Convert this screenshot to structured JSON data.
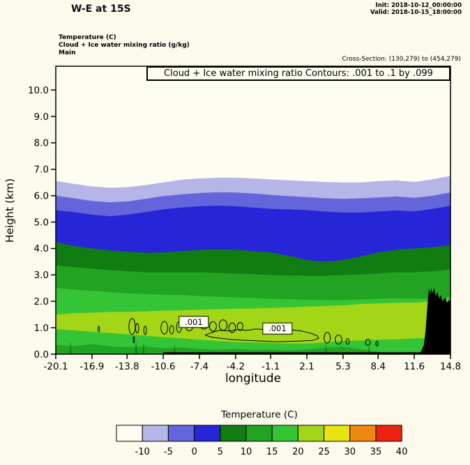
{
  "header": {
    "title": "W-E at 15S",
    "init_label": "Init: 2018-10-12_00:00:00",
    "valid_label": "Valid: 2018-10-15_18:00:00",
    "field_lines": [
      "Temperature  (C)",
      "Cloud + Ice water mixing ratio  (g/kg)",
      "Main"
    ],
    "cross_section": "Cross-Section: (130,279) to (454,279)"
  },
  "plot": {
    "contour_info": "Cloud + Ice water mixing ratio Contours: .001 to .1 by .099",
    "xlabel": "longitude",
    "ylabel": "Height (km)"
  },
  "colorbar": {
    "title": "Temperature  (C)",
    "labels": [
      "-10",
      "-5",
      "0",
      "5",
      "10",
      "15",
      "20",
      "25",
      "30",
      "35",
      "40"
    ],
    "colors": [
      "#fdfdf2",
      "#b5b5e8",
      "#6565db",
      "#2626d8",
      "#117c11",
      "#22a322",
      "#35c435",
      "#a3d616",
      "#e8e414",
      "#ef8812",
      "#ee2212"
    ]
  },
  "chart_data": {
    "type": "filled_contour_cross_section",
    "title": "Cloud + Ice water mixing ratio Contours: .001 to .1 by .099",
    "xlabel": "longitude",
    "ylabel": "Height (km)",
    "ylim_km": [
      0,
      10.9
    ],
    "x_tick_values": [
      -20.1,
      -16.9,
      -13.8,
      -10.6,
      -7.4,
      -4.2,
      -1.1,
      2.1,
      5.3,
      8.4,
      11.6,
      14.8
    ],
    "x_tick_labels": [
      "-20.1",
      "-16.9",
      "-13.8",
      "-10.6",
      "-7.4",
      "-4.2",
      "-1.1",
      "2.1",
      "5.3",
      "8.4",
      "11.6",
      "14.8"
    ],
    "y_tick_values": [
      0,
      1,
      2,
      3,
      4,
      5,
      6,
      7,
      8,
      9,
      10
    ],
    "y_tick_labels": [
      "0.0",
      "1.0",
      "2.0",
      "3.0",
      "4.0",
      "5.0",
      "6.0",
      "7.0",
      "8.0",
      "9.0",
      "10.0"
    ],
    "x": [
      -20.1,
      -18.5,
      -16.9,
      -15.3,
      -13.8,
      -12.2,
      -10.6,
      -9.0,
      -7.4,
      -5.8,
      -4.2,
      -2.6,
      -1.1,
      0.5,
      2.1,
      3.7,
      5.3,
      6.9,
      8.4,
      10.0,
      11.6,
      13.2,
      14.8
    ],
    "temperature_bands": [
      {
        "range_c": "below -10",
        "color": "#fdfdf2"
      },
      {
        "range_c": "-10 to -5",
        "color": "#b5b5e8",
        "top_height_km": [
          6.55,
          6.45,
          6.35,
          6.3,
          6.32,
          6.4,
          6.5,
          6.6,
          6.65,
          6.68,
          6.68,
          6.65,
          6.62,
          6.58,
          6.55,
          6.52,
          6.5,
          6.5,
          6.55,
          6.58,
          6.52,
          6.62,
          6.75
        ]
      },
      {
        "range_c": "-5 to 0",
        "color": "#6565db",
        "top_height_km": [
          6.0,
          5.9,
          5.8,
          5.75,
          5.78,
          5.88,
          5.98,
          6.05,
          6.1,
          6.13,
          6.12,
          6.08,
          6.03,
          5.98,
          5.95,
          5.9,
          5.88,
          5.9,
          5.93,
          5.97,
          5.92,
          6.0,
          6.12
        ]
      },
      {
        "range_c": "0 to 5",
        "color": "#2626d8",
        "top_height_km": [
          5.45,
          5.38,
          5.28,
          5.22,
          5.28,
          5.38,
          5.48,
          5.55,
          5.6,
          5.62,
          5.6,
          5.55,
          5.5,
          5.48,
          5.45,
          5.4,
          5.36,
          5.36,
          5.4,
          5.44,
          5.4,
          5.5,
          5.62
        ]
      },
      {
        "range_c": "5 to 10",
        "color": "#117c11",
        "top_height_km": [
          4.25,
          4.1,
          4.0,
          3.93,
          3.88,
          3.84,
          3.85,
          3.9,
          3.95,
          3.97,
          3.95,
          3.9,
          3.85,
          3.72,
          3.56,
          3.5,
          3.56,
          3.7,
          3.85,
          3.95,
          4.0,
          4.05,
          4.12
        ]
      },
      {
        "range_c": "10 to 15",
        "color": "#22a322",
        "top_height_km": [
          3.35,
          3.3,
          3.24,
          3.18,
          3.14,
          3.1,
          3.1,
          3.1,
          3.1,
          3.08,
          3.05,
          3.03,
          3.0,
          2.98,
          2.96,
          2.96,
          3.0,
          3.02,
          3.06,
          3.1,
          3.1,
          3.14,
          3.2
        ]
      },
      {
        "range_c": "15 to 20",
        "color": "#35c435",
        "top_height_km": [
          2.5,
          2.45,
          2.4,
          2.35,
          2.3,
          2.28,
          2.25,
          2.24,
          2.2,
          2.18,
          2.15,
          2.13,
          2.1,
          2.08,
          2.06,
          2.05,
          2.05,
          2.08,
          2.1,
          2.12,
          2.1,
          2.1,
          2.15
        ]
      }
    ],
    "inversion_band": {
      "range_c": "20 to 25",
      "color": "#a3d616",
      "top_height_km": [
        1.5,
        1.55,
        1.57,
        1.6,
        1.6,
        1.62,
        1.65,
        1.66,
        1.68,
        1.7,
        1.72,
        1.73,
        1.75,
        1.77,
        1.8,
        1.82,
        1.85,
        1.9,
        1.92,
        1.95,
        1.95,
        2.0,
        2.05
      ],
      "bottom_height_km": [
        0.95,
        0.9,
        0.85,
        0.8,
        0.75,
        0.7,
        0.64,
        0.6,
        0.55,
        0.5,
        0.46,
        0.44,
        0.42,
        0.4,
        0.4,
        0.44,
        0.5,
        0.52,
        0.55,
        0.56,
        0.6,
        0.6,
        0.6
      ]
    },
    "cool_surface_layer": {
      "range_c": "10 to 15",
      "color": "#22a322",
      "top_height_km": [
        0.35,
        0.3,
        0.38,
        0.3,
        0.26,
        0.3,
        0.22,
        0.25,
        0.2,
        0.16,
        0.2,
        0.15,
        0.18,
        0.14,
        0.18,
        0.24,
        0.28,
        0.18,
        0.1,
        0.04,
        0.0,
        0.0,
        0.0
      ]
    },
    "surface_dips": {
      "color": "#117c11",
      "half_width_deg": 0.1,
      "points": [
        [
          -18.8,
          0.5
        ],
        [
          -13.0,
          0.55
        ],
        [
          -12.35,
          0.45
        ],
        [
          -9.6,
          0.4
        ],
        [
          3.8,
          0.4
        ],
        [
          7.6,
          0.35
        ]
      ]
    },
    "terrain": {
      "color": "#000000",
      "profile_lon_km": [
        [
          11.9,
          0
        ],
        [
          12.2,
          0.1
        ],
        [
          12.45,
          0.35
        ],
        [
          12.6,
          0.9
        ],
        [
          12.72,
          1.6
        ],
        [
          12.82,
          2.2
        ],
        [
          12.9,
          2.5
        ],
        [
          13.0,
          2.25
        ],
        [
          13.1,
          2.5
        ],
        [
          13.2,
          2.3
        ],
        [
          13.35,
          2.5
        ],
        [
          13.5,
          2.2
        ],
        [
          13.65,
          2.35
        ],
        [
          13.8,
          2.1
        ],
        [
          13.95,
          2.25
        ],
        [
          14.1,
          2.0
        ],
        [
          14.3,
          2.15
        ],
        [
          14.5,
          1.95
        ],
        [
          14.65,
          2.05
        ],
        [
          14.8,
          2.0
        ],
        [
          14.8,
          0
        ]
      ]
    },
    "surface_strip": {
      "color": "#000000",
      "x_from": -10.6,
      "x_to": 14.8,
      "top_km": 0.07
    },
    "cloud_contours": {
      "color": "#000000",
      "levels": [
        0.001,
        0.1
      ],
      "label_text": ".001",
      "ellipses": [
        [
          -16.3,
          0.95,
          0.07,
          0.1
        ],
        [
          -13.35,
          1.05,
          0.28,
          0.3
        ],
        [
          -12.9,
          0.98,
          0.14,
          0.18
        ],
        [
          -13.2,
          0.55,
          0.05,
          0.12
        ],
        [
          -12.2,
          0.9,
          0.12,
          0.16
        ],
        [
          -10.5,
          1.0,
          0.3,
          0.24
        ],
        [
          -9.85,
          0.92,
          0.18,
          0.16
        ],
        [
          -9.2,
          1.02,
          0.22,
          0.2
        ],
        [
          -8.3,
          1.1,
          0.35,
          0.22
        ],
        [
          -7.0,
          1.15,
          0.4,
          0.2
        ],
        [
          -6.2,
          1.05,
          0.3,
          0.18
        ],
        [
          -5.3,
          1.1,
          0.35,
          0.2
        ],
        [
          -4.5,
          1.0,
          0.3,
          0.18
        ],
        [
          -3.8,
          1.05,
          0.25,
          0.15
        ],
        [
          3.9,
          0.62,
          0.28,
          0.2
        ],
        [
          4.9,
          0.55,
          0.3,
          0.17
        ],
        [
          5.7,
          0.48,
          0.14,
          0.11
        ],
        [
          7.5,
          0.45,
          0.2,
          0.12
        ],
        [
          8.3,
          0.4,
          0.1,
          0.09
        ]
      ],
      "outline": [
        [
          -6.9,
          0.72
        ],
        [
          -6.3,
          0.82
        ],
        [
          -5.6,
          0.9
        ],
        [
          -4.8,
          0.88
        ],
        [
          -4.0,
          0.93
        ],
        [
          -3.2,
          0.9
        ],
        [
          -2.4,
          0.95
        ],
        [
          -1.6,
          0.93
        ],
        [
          -0.8,
          0.97
        ],
        [
          0.0,
          0.95
        ],
        [
          0.8,
          0.92
        ],
        [
          1.6,
          0.88
        ],
        [
          2.4,
          0.8
        ],
        [
          3.0,
          0.7
        ],
        [
          3.15,
          0.6
        ],
        [
          2.6,
          0.52
        ],
        [
          1.6,
          0.5
        ],
        [
          0.4,
          0.48
        ],
        [
          -0.8,
          0.47
        ],
        [
          -2.0,
          0.5
        ],
        [
          -3.2,
          0.52
        ],
        [
          -4.4,
          0.55
        ],
        [
          -5.5,
          0.6
        ],
        [
          -6.4,
          0.65
        ]
      ],
      "labels": [
        [
          -7.9,
          1.22
        ],
        [
          -0.5,
          0.97
        ]
      ]
    }
  }
}
